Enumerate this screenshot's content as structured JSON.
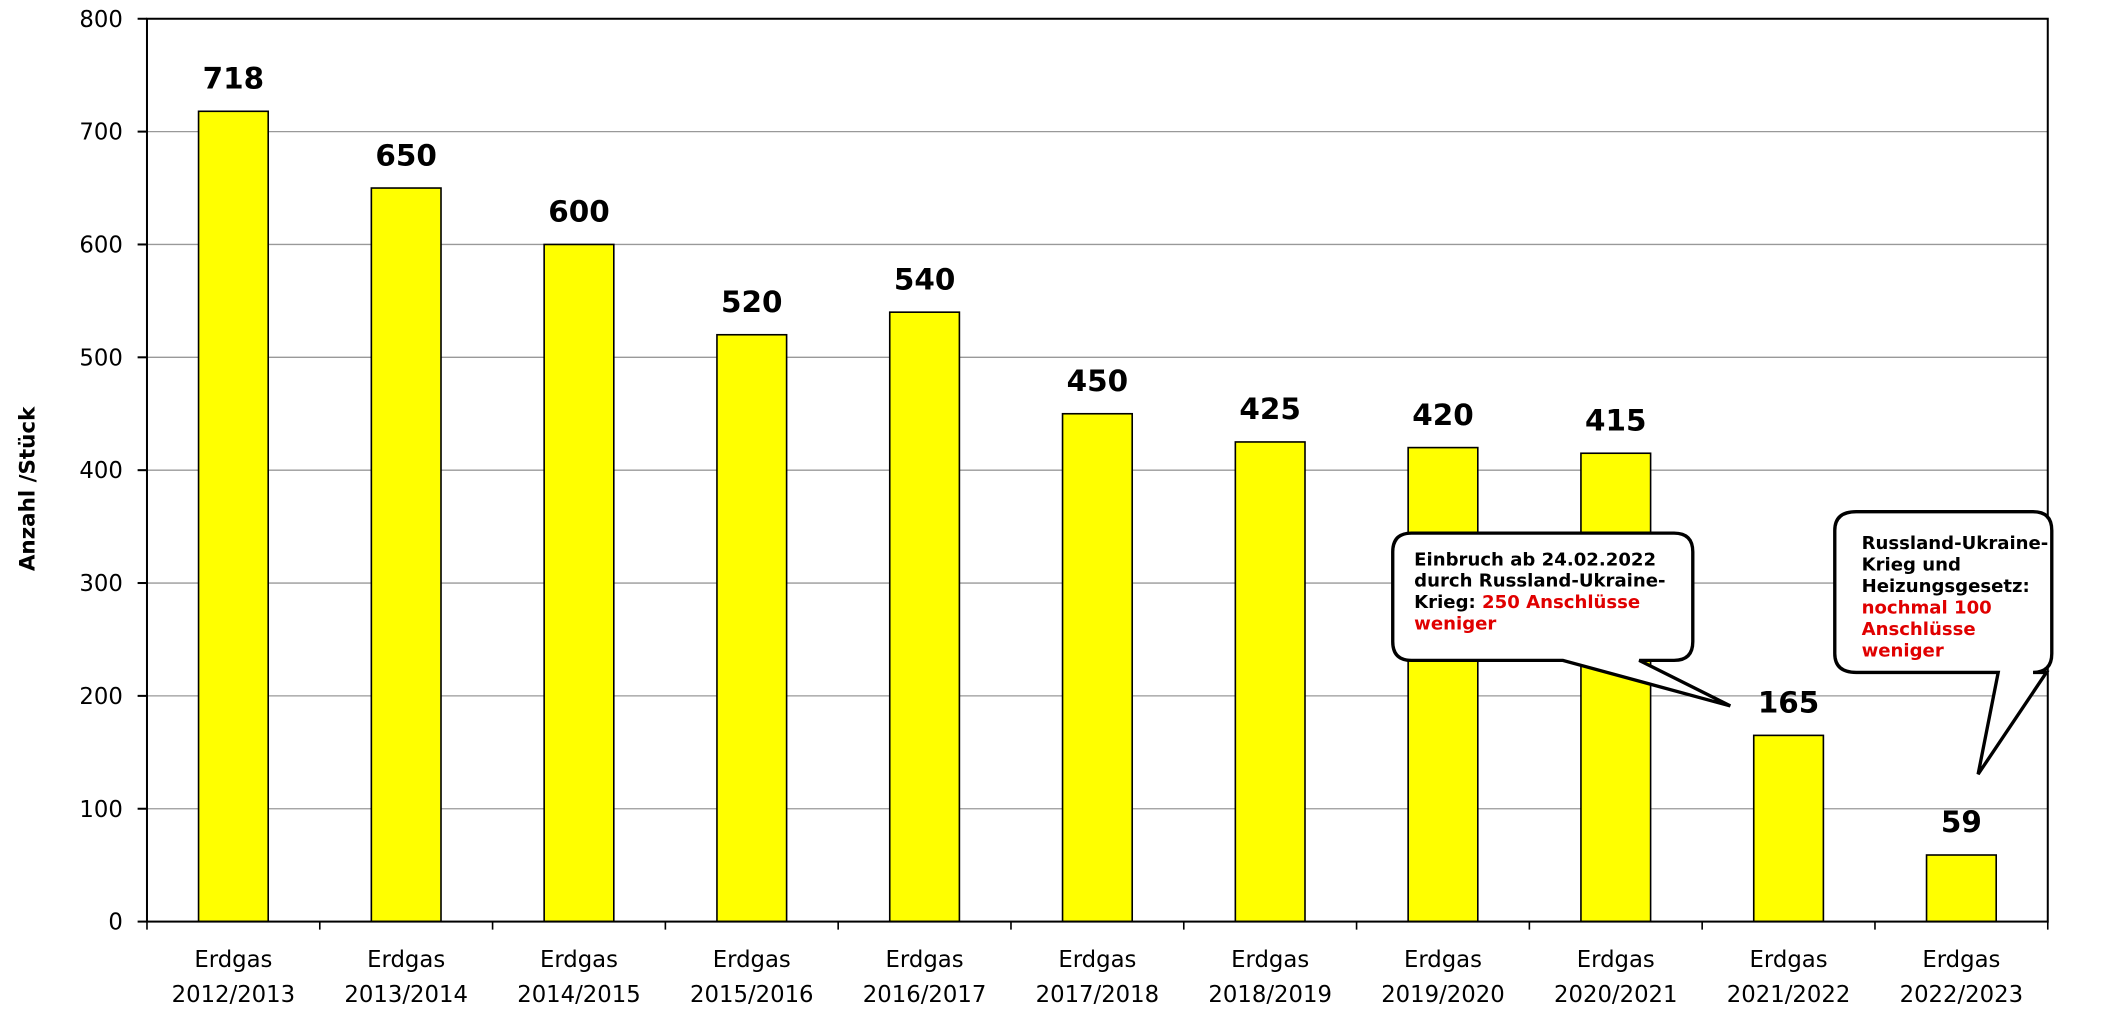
{
  "chart_data": {
    "type": "bar",
    "y_axis_label": "Anzahl /Stück",
    "categories": [
      "Erdgas 2012/2013",
      "Erdgas 2013/2014",
      "Erdgas 2014/2015",
      "Erdgas 2015/2016",
      "Erdgas 2016/2017",
      "Erdgas 2017/2018",
      "Erdgas 2018/2019",
      "Erdgas 2019/2020",
      "Erdgas 2020/2021",
      "Erdgas 2021/2022",
      "Erdgas 2022/2023"
    ],
    "values": [
      718,
      650,
      600,
      520,
      540,
      450,
      425,
      420,
      415,
      165,
      59
    ],
    "color": "#ffff00",
    "ylim": [
      0,
      800
    ],
    "yticks": [
      0,
      100,
      200,
      300,
      400,
      500,
      600,
      700,
      800
    ],
    "grid": true,
    "annotations": [
      {
        "text": "Einbruch ab 24.02.2022 durch Russland-Ukraine-Krieg:",
        "highlight": "250 Anschlüsse weniger"
      },
      {
        "text": "Russland-Ukraine-Krieg und Heizungsgesetz:",
        "highlight": "nochmal 100 Anschlüsse weniger"
      }
    ]
  }
}
